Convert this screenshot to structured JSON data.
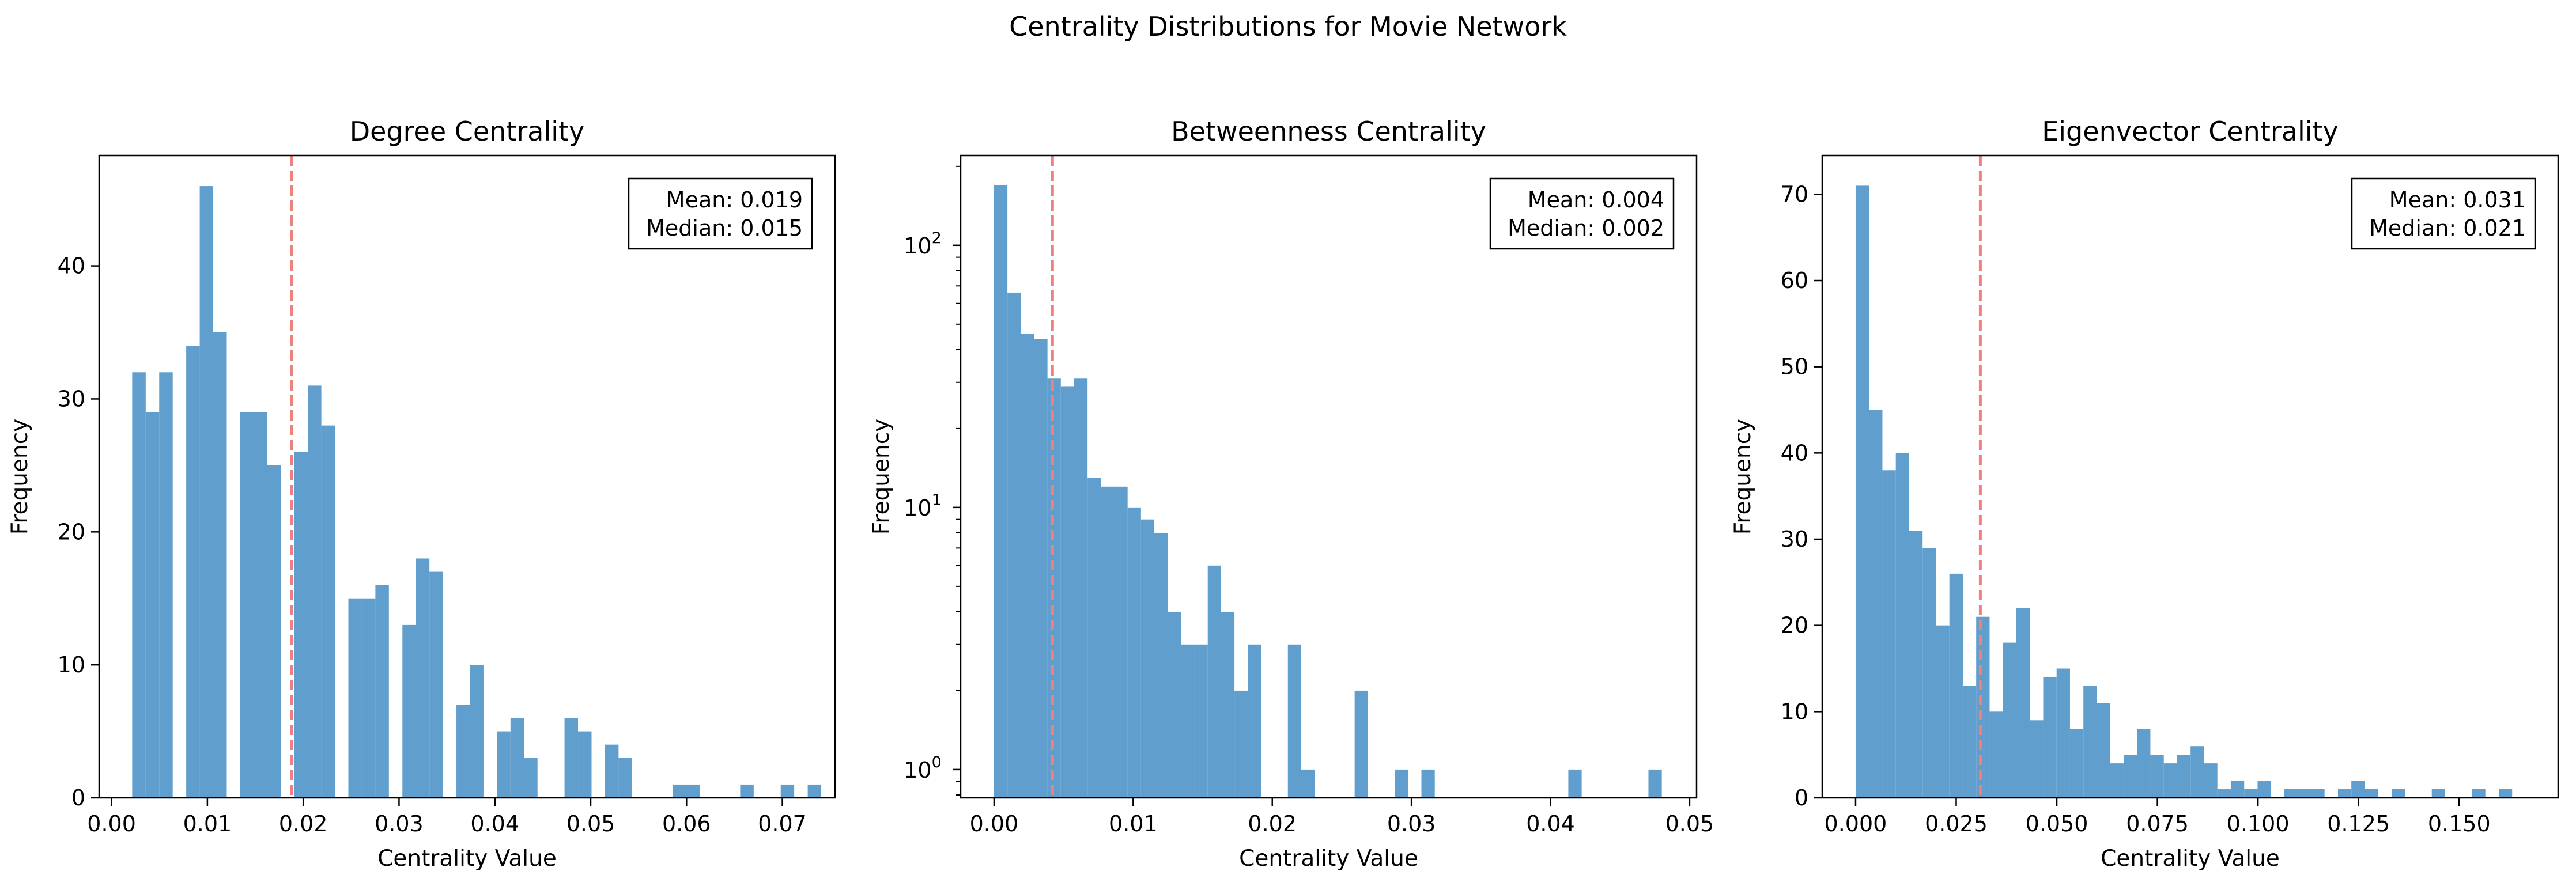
{
  "figure": {
    "title": "Centrality Distributions for Movie Network"
  },
  "chart_data": [
    {
      "type": "bar",
      "title": "Degree Centrality",
      "xlabel": "Centrality Value",
      "ylabel": "Frequency",
      "yscale": "linear",
      "xlim": [
        -0.0013,
        0.0755
      ],
      "ylim": [
        0,
        48.3
      ],
      "xticks": [
        {
          "value": 0.0,
          "label": "0.00"
        },
        {
          "value": 0.01,
          "label": "0.01"
        },
        {
          "value": 0.02,
          "label": "0.02"
        },
        {
          "value": 0.03,
          "label": "0.03"
        },
        {
          "value": 0.04,
          "label": "0.04"
        },
        {
          "value": 0.05,
          "label": "0.05"
        },
        {
          "value": 0.06,
          "label": "0.06"
        },
        {
          "value": 0.07,
          "label": "0.07"
        }
      ],
      "yticks": [
        {
          "value": 0,
          "label": "0"
        },
        {
          "value": 10,
          "label": "10"
        },
        {
          "value": 20,
          "label": "20"
        },
        {
          "value": 30,
          "label": "30"
        },
        {
          "value": 40,
          "label": "40"
        }
      ],
      "bin_start": 0.00215,
      "bin_width": 0.00141,
      "values": [
        32,
        29,
        32,
        0,
        34,
        46,
        35,
        0,
        29,
        29,
        25,
        0,
        26,
        31,
        28,
        0,
        15,
        15,
        16,
        0,
        13,
        18,
        17,
        0,
        7,
        10,
        0,
        5,
        6,
        3,
        0,
        0,
        6,
        5,
        0,
        4,
        3,
        0,
        0,
        0,
        1,
        1,
        0,
        0,
        0,
        1,
        0,
        0,
        1,
        0,
        1
      ],
      "reference_line": {
        "x": 0.0188,
        "color": "#f08080",
        "style": "dashed"
      },
      "stats_box": {
        "mean_text": "Mean: 0.019",
        "median_text": "Median: 0.015"
      },
      "bar_color": "#5f9ecd",
      "grid": false
    },
    {
      "type": "bar",
      "title": "Betweenness Centrality",
      "xlabel": "Centrality Value",
      "ylabel": "Frequency",
      "yscale": "log",
      "xlim": [
        -0.0024,
        0.0505
      ],
      "ylim": [
        0.78,
        220
      ],
      "xticks": [
        {
          "value": 0.0,
          "label": "0.00"
        },
        {
          "value": 0.01,
          "label": "0.01"
        },
        {
          "value": 0.02,
          "label": "0.02"
        },
        {
          "value": 0.03,
          "label": "0.03"
        },
        {
          "value": 0.04,
          "label": "0.04"
        },
        {
          "value": 0.05,
          "label": "0.05"
        }
      ],
      "yticks": [
        {
          "value": 1,
          "base": "10",
          "exp": "0"
        },
        {
          "value": 10,
          "base": "10",
          "exp": "1"
        },
        {
          "value": 100,
          "base": "10",
          "exp": "2"
        }
      ],
      "bin_start": 0.0,
      "bin_width": 0.00096,
      "values": [
        170,
        66,
        46,
        44,
        31,
        29,
        31,
        13,
        12,
        12,
        10,
        9,
        8,
        4,
        3,
        3,
        6,
        4,
        2,
        3,
        0,
        0,
        3,
        1,
        0,
        0,
        0,
        2,
        0,
        0,
        1,
        0,
        1,
        0,
        0,
        0,
        0,
        0,
        0,
        0,
        0,
        0,
        0,
        1,
        0,
        0,
        0,
        0,
        0,
        1
      ],
      "reference_line": {
        "x": 0.0042,
        "color": "#f08080",
        "style": "dashed"
      },
      "stats_box": {
        "mean_text": "Mean: 0.004",
        "median_text": "Median: 0.002"
      },
      "bar_color": "#5f9ecd",
      "grid": false
    },
    {
      "type": "bar",
      "title": "Eigenvector Centrality",
      "xlabel": "Centrality Value",
      "ylabel": "Frequency",
      "yscale": "linear",
      "xlim": [
        -0.0083,
        0.1746
      ],
      "ylim": [
        0,
        74.5
      ],
      "xticks": [
        {
          "value": 0.0,
          "label": "0.000"
        },
        {
          "value": 0.025,
          "label": "0.025"
        },
        {
          "value": 0.05,
          "label": "0.050"
        },
        {
          "value": 0.075,
          "label": "0.075"
        },
        {
          "value": 0.1,
          "label": "0.100"
        },
        {
          "value": 0.125,
          "label": "0.125"
        },
        {
          "value": 0.15,
          "label": "0.150"
        }
      ],
      "yticks": [
        {
          "value": 0,
          "label": "0"
        },
        {
          "value": 10,
          "label": "10"
        },
        {
          "value": 20,
          "label": "20"
        },
        {
          "value": 30,
          "label": "30"
        },
        {
          "value": 40,
          "label": "40"
        },
        {
          "value": 50,
          "label": "50"
        },
        {
          "value": 60,
          "label": "60"
        },
        {
          "value": 70,
          "label": "70"
        }
      ],
      "bin_start": 0.0,
      "bin_width": 0.00333,
      "values": [
        71,
        45,
        38,
        40,
        31,
        29,
        20,
        26,
        13,
        21,
        10,
        18,
        22,
        9,
        14,
        15,
        8,
        13,
        11,
        4,
        5,
        8,
        5,
        4,
        5,
        6,
        4,
        1,
        2,
        1,
        2,
        0,
        1,
        1,
        1,
        0,
        1,
        2,
        1,
        0,
        1,
        0,
        0,
        1,
        0,
        0,
        1,
        0,
        1,
        0
      ],
      "reference_line": {
        "x": 0.031,
        "color": "#f08080",
        "style": "dashed"
      },
      "stats_box": {
        "mean_text": "Mean: 0.031",
        "median_text": "Median: 0.021"
      },
      "bar_color": "#5f9ecd",
      "grid": false
    }
  ]
}
